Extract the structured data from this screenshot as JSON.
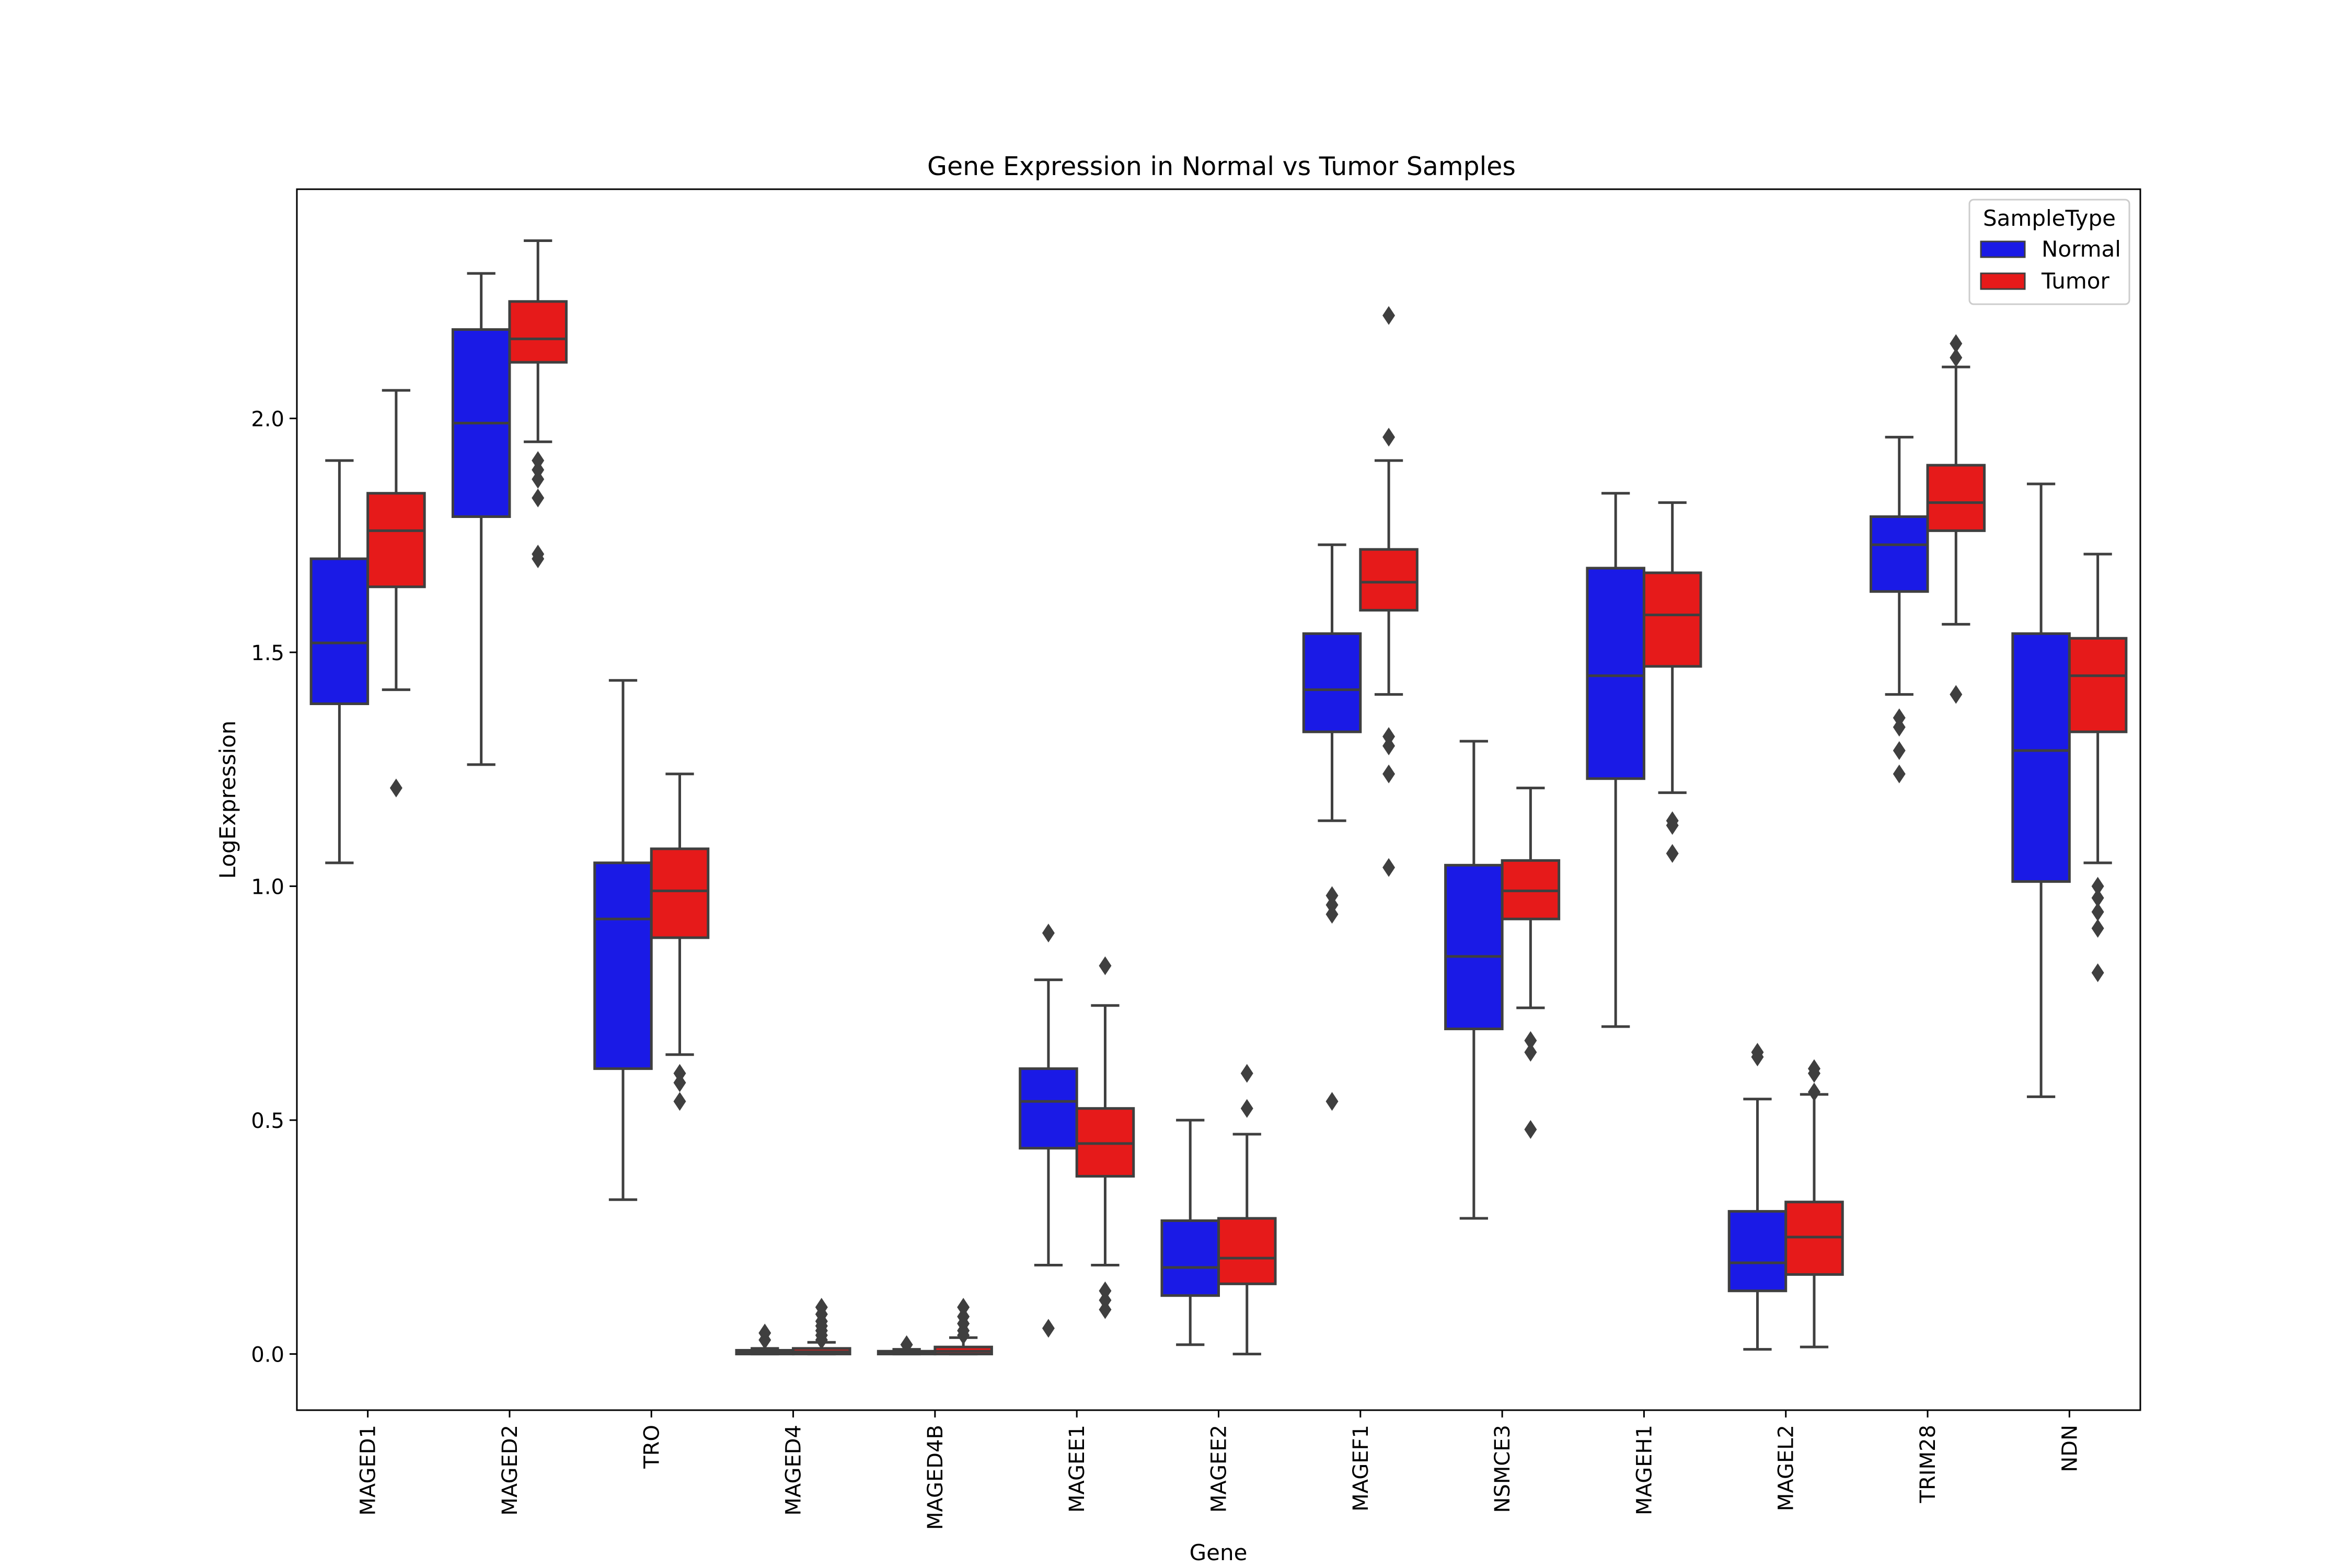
{
  "chart_data": {
    "type": "box",
    "title": "Gene Expression in Normal vs Tumor Samples",
    "xlabel": "Gene",
    "ylabel": "LogExpression",
    "ylim": [
      -0.12,
      2.49
    ],
    "yticks": [
      0.0,
      0.5,
      1.0,
      1.5,
      2.0
    ],
    "ytick_labels": [
      "0.0",
      "0.5",
      "1.0",
      "1.5",
      "2.0"
    ],
    "grid": false,
    "legend": {
      "title": "SampleType",
      "position": "top-right",
      "entries": [
        {
          "label": "Normal",
          "color": "#1a1ae6"
        },
        {
          "label": "Tumor",
          "color": "#e61a1a"
        }
      ]
    },
    "categories": [
      "MAGED1",
      "MAGED2",
      "TRO",
      "MAGED4",
      "MAGED4B",
      "MAGEE1",
      "MAGEE2",
      "MAGEF1",
      "NSMCE3",
      "MAGEH1",
      "MAGEL2",
      "TRIM28",
      "NDN"
    ],
    "series": [
      {
        "name": "Normal",
        "color": "#1a1ae6",
        "boxes": [
          {
            "whislo": 1.05,
            "q1": 1.39,
            "med": 1.52,
            "q3": 1.7,
            "whishi": 1.91,
            "fliers": []
          },
          {
            "whislo": 1.26,
            "q1": 1.79,
            "med": 1.99,
            "q3": 2.19,
            "whishi": 2.31,
            "fliers": []
          },
          {
            "whislo": 0.33,
            "q1": 0.61,
            "med": 0.93,
            "q3": 1.05,
            "whishi": 1.44,
            "fliers": []
          },
          {
            "whislo": 0.0,
            "q1": 0.0,
            "med": 0.003,
            "q3": 0.008,
            "whishi": 0.012,
            "fliers": [
              0.045,
              0.03
            ]
          },
          {
            "whislo": 0.0,
            "q1": 0.0,
            "med": 0.003,
            "q3": 0.006,
            "whishi": 0.01,
            "fliers": [
              0.02
            ]
          },
          {
            "whislo": 0.19,
            "q1": 0.44,
            "med": 0.54,
            "q3": 0.61,
            "whishi": 0.8,
            "fliers": [
              0.9,
              0.055
            ]
          },
          {
            "whislo": 0.02,
            "q1": 0.125,
            "med": 0.185,
            "q3": 0.285,
            "whishi": 0.5,
            "fliers": []
          },
          {
            "whislo": 1.14,
            "q1": 1.33,
            "med": 1.42,
            "q3": 1.54,
            "whishi": 1.73,
            "fliers": [
              0.98,
              0.96,
              0.94,
              0.54
            ]
          },
          {
            "whislo": 0.29,
            "q1": 0.695,
            "med": 0.85,
            "q3": 1.045,
            "whishi": 1.31,
            "fliers": []
          },
          {
            "whislo": 0.7,
            "q1": 1.23,
            "med": 1.45,
            "q3": 1.68,
            "whishi": 1.84,
            "fliers": []
          },
          {
            "whislo": 0.01,
            "q1": 0.135,
            "med": 0.195,
            "q3": 0.305,
            "whishi": 0.545,
            "fliers": [
              0.645,
              0.635
            ]
          },
          {
            "whislo": 1.41,
            "q1": 1.63,
            "med": 1.73,
            "q3": 1.79,
            "whishi": 1.96,
            "fliers": [
              1.36,
              1.34,
              1.29,
              1.24
            ]
          },
          {
            "whislo": 0.55,
            "q1": 1.01,
            "med": 1.29,
            "q3": 1.54,
            "whishi": 1.86,
            "fliers": []
          }
        ]
      },
      {
        "name": "Tumor",
        "color": "#e61a1a",
        "boxes": [
          {
            "whislo": 1.42,
            "q1": 1.64,
            "med": 1.76,
            "q3": 1.84,
            "whishi": 2.06,
            "fliers": [
              1.21
            ]
          },
          {
            "whislo": 1.95,
            "q1": 2.12,
            "med": 2.17,
            "q3": 2.25,
            "whishi": 2.38,
            "fliers": [
              1.91,
              1.89,
              1.87,
              1.83,
              1.71,
              1.7
            ]
          },
          {
            "whislo": 0.64,
            "q1": 0.89,
            "med": 0.99,
            "q3": 1.08,
            "whishi": 1.24,
            "fliers": [
              0.6,
              0.58,
              0.54
            ]
          },
          {
            "whislo": 0.0,
            "q1": 0.0,
            "med": 0.005,
            "q3": 0.012,
            "whishi": 0.025,
            "fliers": [
              0.1,
              0.085,
              0.07,
              0.06,
              0.05,
              0.04,
              0.03
            ]
          },
          {
            "whislo": 0.0,
            "q1": 0.0,
            "med": 0.006,
            "q3": 0.015,
            "whishi": 0.035,
            "fliers": [
              0.1,
              0.08,
              0.065,
              0.05,
              0.04
            ]
          },
          {
            "whislo": 0.19,
            "q1": 0.38,
            "med": 0.45,
            "q3": 0.525,
            "whishi": 0.745,
            "fliers": [
              0.83,
              0.135,
              0.115,
              0.095
            ]
          },
          {
            "whislo": 0.0,
            "q1": 0.15,
            "med": 0.205,
            "q3": 0.29,
            "whishi": 0.47,
            "fliers": [
              0.6,
              0.525
            ]
          },
          {
            "whislo": 1.41,
            "q1": 1.59,
            "med": 1.65,
            "q3": 1.72,
            "whishi": 1.91,
            "fliers": [
              2.22,
              1.96,
              1.32,
              1.3,
              1.24,
              1.04
            ]
          },
          {
            "whislo": 0.74,
            "q1": 0.93,
            "med": 0.99,
            "q3": 1.055,
            "whishi": 1.21,
            "fliers": [
              0.67,
              0.645,
              0.48
            ]
          },
          {
            "whislo": 1.2,
            "q1": 1.47,
            "med": 1.58,
            "q3": 1.67,
            "whishi": 1.82,
            "fliers": [
              1.14,
              1.13,
              1.07
            ]
          },
          {
            "whislo": 0.015,
            "q1": 0.17,
            "med": 0.25,
            "q3": 0.325,
            "whishi": 0.555,
            "fliers": [
              0.61,
              0.6,
              0.56
            ]
          },
          {
            "whislo": 1.56,
            "q1": 1.76,
            "med": 1.82,
            "q3": 1.9,
            "whishi": 2.11,
            "fliers": [
              2.16,
              2.13,
              1.41
            ]
          },
          {
            "whislo": 1.05,
            "q1": 1.33,
            "med": 1.45,
            "q3": 1.53,
            "whishi": 1.71,
            "fliers": [
              1.0,
              0.975,
              0.945,
              0.91,
              0.815
            ]
          }
        ]
      }
    ]
  }
}
